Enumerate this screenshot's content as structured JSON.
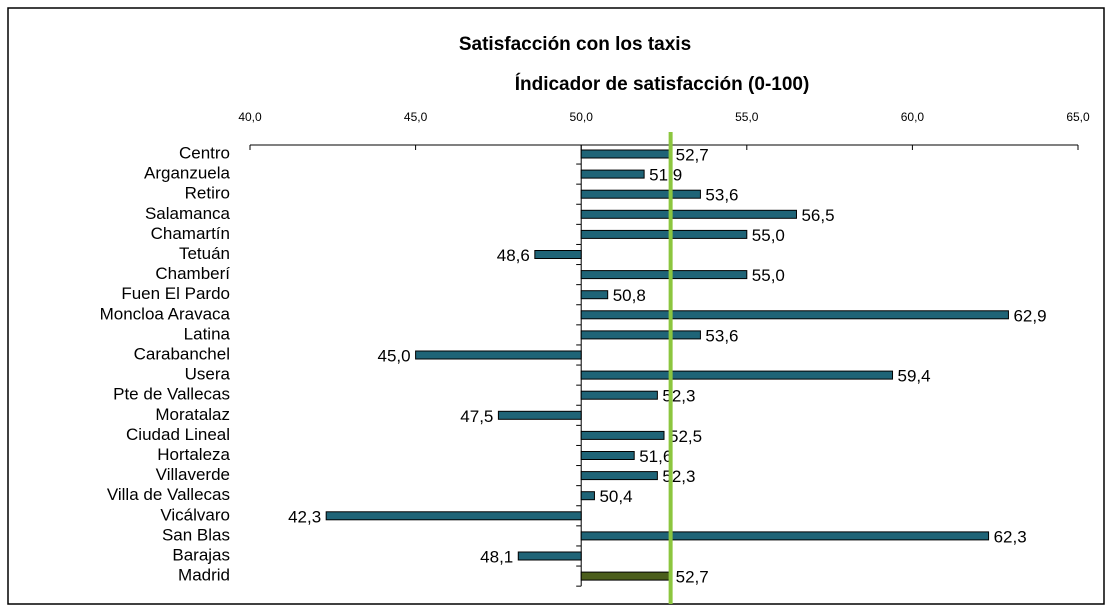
{
  "chart_data": {
    "type": "bar",
    "orientation": "horizontal",
    "title": "Satisfacción con los taxis",
    "subtitle": "Índicador de satisfacción (0-100)",
    "categories": [
      "Centro",
      "Arganzuela",
      "Retiro",
      "Salamanca",
      "Chamartín",
      "Tetuán",
      "Chamberí",
      "Fuen El Pardo",
      "Moncloa Aravaca",
      "Latina",
      "Carabanchel",
      "Usera",
      "Pte de Vallecas",
      "Moratalaz",
      "Ciudad Lineal",
      "Hortaleza",
      "Villaverde",
      "Villa de Vallecas",
      "Vicálvaro",
      "San Blas",
      "Barajas",
      "Madrid"
    ],
    "values": [
      52.7,
      51.9,
      53.6,
      56.5,
      55.0,
      48.6,
      55.0,
      50.8,
      62.9,
      53.6,
      45.0,
      59.4,
      52.3,
      47.5,
      52.5,
      51.6,
      52.3,
      50.4,
      42.3,
      62.3,
      48.1,
      52.7
    ],
    "value_labels": [
      "52,7",
      "51,9",
      "53,6",
      "56,5",
      "55,0",
      "48,6",
      "55,0",
      "50,8",
      "62,9",
      "53,6",
      "45,0",
      "59,4",
      "52,3",
      "47,5",
      "52,5",
      "51,6",
      "52,3",
      "50,4",
      "42,3",
      "62,3",
      "48,1",
      "52,7"
    ],
    "color": "#1f6477",
    "highlight": {
      "category": "Madrid",
      "color": "#4b5e1c"
    },
    "base": 50,
    "reference_line": {
      "value": 52.7,
      "color": "#8cc63f"
    },
    "xlim": [
      40,
      65
    ],
    "xticks": [
      {
        "value": 40,
        "label": "40,0"
      },
      {
        "value": 45,
        "label": "45,0"
      },
      {
        "value": 50,
        "label": "50,0"
      },
      {
        "value": 55,
        "label": "55,0"
      },
      {
        "value": 60,
        "label": "60,0"
      },
      {
        "value": 65,
        "label": "65,0"
      }
    ]
  }
}
